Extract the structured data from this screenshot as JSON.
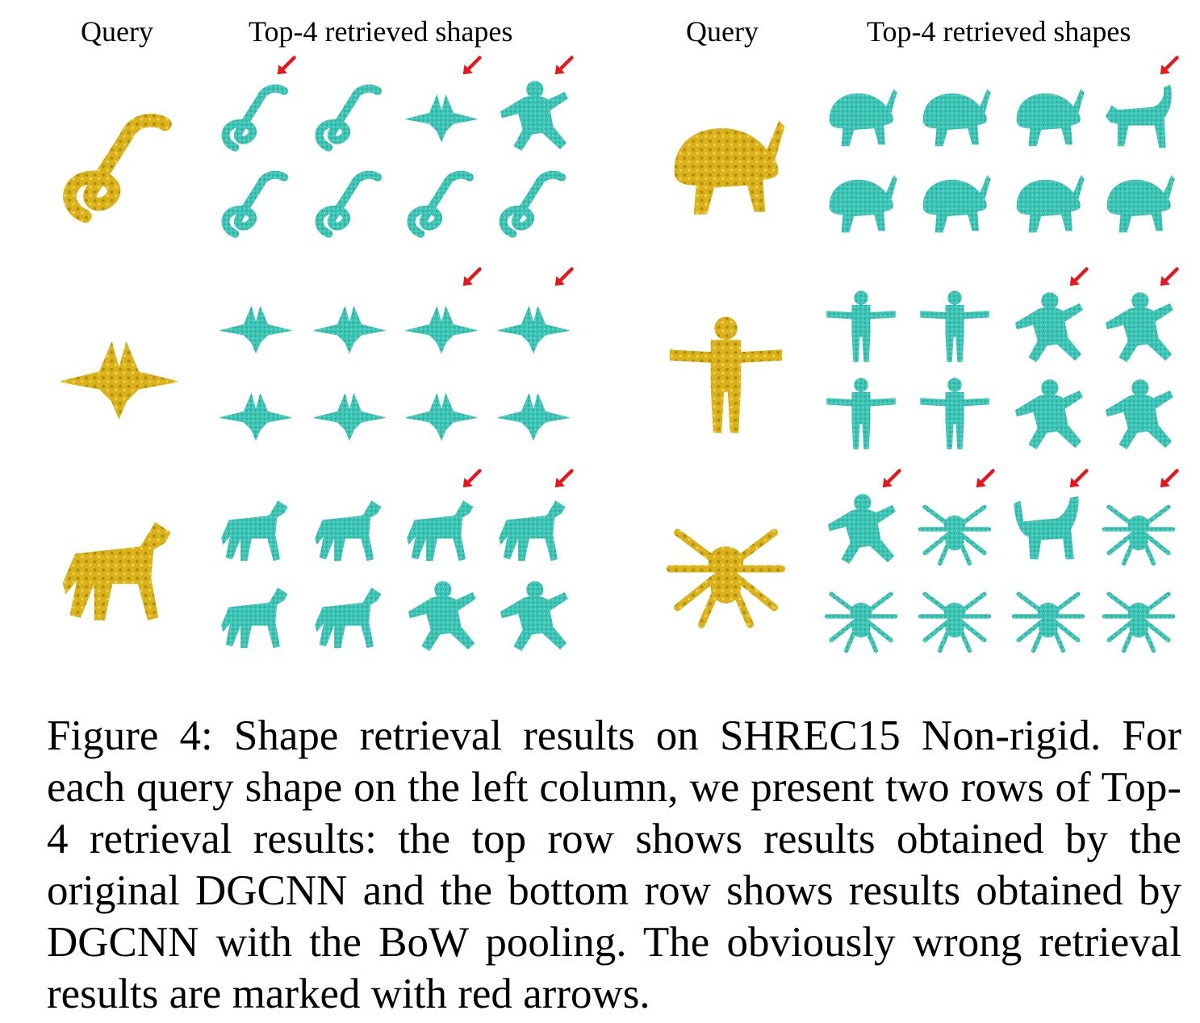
{
  "figure": {
    "headers": {
      "left_query": "Query",
      "left_retrieved": "Top-4 retrieved shapes",
      "right_query": "Query",
      "right_retrieved": "Top-4 retrieved shapes"
    },
    "colors": {
      "query": "#d9b21c",
      "query_dark": "#b58f0a",
      "retrieved": "#3cc4b4",
      "retrieved_dark": "#1f9e90",
      "wrong_marker": "#e8161b"
    },
    "panels": [
      {
        "name": "panel-left",
        "groups": [
          {
            "query_shape": "snake-icon",
            "top_row": {
              "shapes": [
                "snake-icon",
                "snake-icon",
                "bird-icon",
                "figure-icon"
              ],
              "wrong": [
                true,
                false,
                true,
                true
              ]
            },
            "bottom_row": {
              "shapes": [
                "snake-icon",
                "snake-icon",
                "snake-icon",
                "snake-icon"
              ],
              "wrong": [
                false,
                false,
                false,
                false
              ]
            }
          },
          {
            "query_shape": "bird-icon",
            "top_row": {
              "shapes": [
                "bird-icon",
                "bird-icon",
                "bird-icon",
                "bird-icon"
              ],
              "wrong": [
                false,
                false,
                true,
                true
              ]
            },
            "bottom_row": {
              "shapes": [
                "bird-icon",
                "bird-icon",
                "bird-icon",
                "bird-icon"
              ],
              "wrong": [
                false,
                false,
                false,
                false
              ]
            }
          },
          {
            "query_shape": "horse-icon",
            "top_row": {
              "shapes": [
                "horse-icon",
                "horse-icon",
                "horse-icon",
                "horse-icon"
              ],
              "wrong": [
                false,
                false,
                true,
                true
              ]
            },
            "bottom_row": {
              "shapes": [
                "horse-icon",
                "horse-icon",
                "figure-icon",
                "figure-icon"
              ],
              "wrong": [
                false,
                false,
                false,
                false
              ]
            }
          }
        ]
      },
      {
        "name": "panel-right",
        "groups": [
          {
            "query_shape": "rabbit-icon",
            "top_row": {
              "shapes": [
                "rabbit-icon",
                "rabbit-icon",
                "rabbit-icon",
                "cat-icon"
              ],
              "wrong": [
                false,
                false,
                false,
                true
              ]
            },
            "bottom_row": {
              "shapes": [
                "rabbit-icon",
                "rabbit-icon",
                "rabbit-icon",
                "rabbit-icon"
              ],
              "wrong": [
                false,
                false,
                false,
                false
              ]
            }
          },
          {
            "query_shape": "robot-icon",
            "top_row": {
              "shapes": [
                "robot-icon",
                "robot-icon",
                "figure-icon",
                "figure-icon"
              ],
              "wrong": [
                false,
                false,
                true,
                true
              ]
            },
            "bottom_row": {
              "shapes": [
                "robot-icon",
                "robot-icon",
                "figure-icon",
                "figure-icon"
              ],
              "wrong": [
                false,
                false,
                false,
                false
              ]
            }
          },
          {
            "query_shape": "spider-icon",
            "top_row": {
              "shapes": [
                "figure-icon",
                "spider-icon",
                "dino-icon",
                "spider-icon"
              ],
              "wrong": [
                true,
                true,
                true,
                true
              ]
            },
            "bottom_row": {
              "shapes": [
                "spider-icon",
                "spider-icon",
                "spider-icon",
                "spider-icon"
              ],
              "wrong": [
                false,
                false,
                false,
                false
              ]
            }
          }
        ]
      }
    ]
  },
  "caption": {
    "text": "Figure 4: Shape retrieval results on SHREC15 Non-rigid. For each query shape on the left column, we present two rows of Top-4 retrieval results: the top row shows results obtained by the original DGCNN and the bottom row shows results obtained by DGCNN with the BoW pooling. The obviously wrong retrieval results are marked with red arrows."
  }
}
